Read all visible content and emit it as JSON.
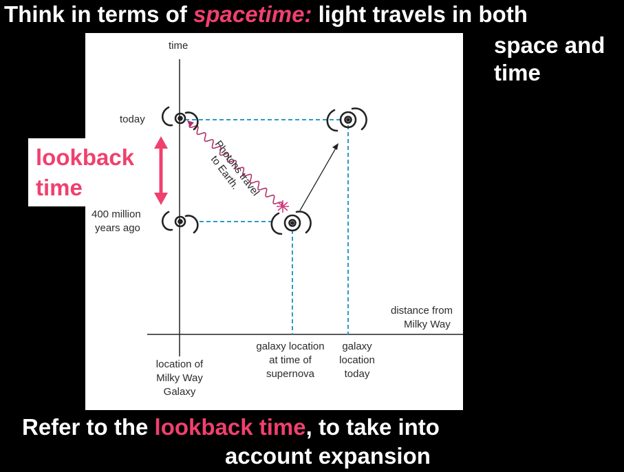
{
  "title": {
    "before": "Think in terms of ",
    "highlight": "spacetime:",
    "after": " light travels in both",
    "line2a": "space and",
    "line2b": "time"
  },
  "footer": {
    "before": "Refer to the ",
    "highlight": "lookback time",
    "after": ", to take into",
    "line2": "account expansion"
  },
  "lookback_label": {
    "line1": "lookback",
    "line2": "time"
  },
  "diagram": {
    "time_axis_label": "time",
    "distance_axis_label_line1": "distance from",
    "distance_axis_label_line2": "Milky Way",
    "today_label": "today",
    "past_label_line1": "400 million",
    "past_label_line2": "years ago",
    "photons_label_line1": "Photons travel",
    "photons_label_line2": "to Earth.",
    "milky_way_label_line1": "location of",
    "milky_way_label_line2": "Milky Way",
    "milky_way_label_line3": "Galaxy",
    "supernova_label_line1": "galaxy location",
    "supernova_label_line2": "at time of",
    "supernova_label_line3": "supernova",
    "today_location_label_line1": "galaxy",
    "today_location_label_line2": "location",
    "today_location_label_line3": "today"
  },
  "colors": {
    "highlight": "#f0406e",
    "dashed": "#2a9bc4",
    "photon_wave": "#b0306a"
  }
}
